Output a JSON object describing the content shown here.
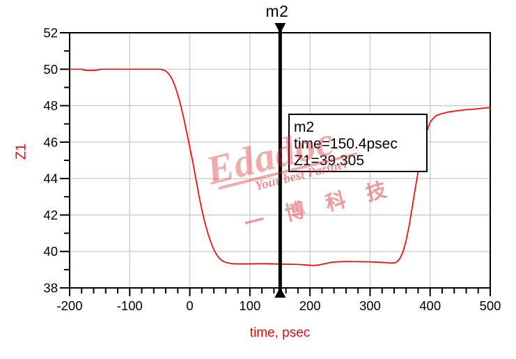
{
  "marker_top_label": "m2",
  "axes": {
    "y_title": "Z1",
    "x_title": "time, psec",
    "x_tick_labels": [
      "-200",
      "-100",
      "0",
      "100",
      "200",
      "300",
      "400",
      "500"
    ],
    "y_tick_labels": [
      "38",
      "40",
      "42",
      "44",
      "46",
      "48",
      "50",
      "52"
    ]
  },
  "annotation_box": {
    "lines": [
      "m2",
      "time=150.4psec",
      "Z1=39.305"
    ]
  },
  "watermark": {
    "brand": "Edadoc",
    "tagline": "Your best Partner",
    "cjk": "一博科技"
  },
  "colors": {
    "trace": "#ff0000",
    "axis": "#000000",
    "grid": "#c9c9c9",
    "tick_label": "#000000",
    "axis_title": "#ff0000",
    "marker": "#000000",
    "box_fill": "#ffffff",
    "box_border": "#000000"
  },
  "chart_data": {
    "type": "line",
    "title": "",
    "xlabel": "time, psec",
    "ylabel": "Z1",
    "xlim": [
      -200,
      500
    ],
    "ylim": [
      38,
      52
    ],
    "x_major_ticks": [
      -200,
      -100,
      0,
      100,
      200,
      300,
      400,
      500
    ],
    "x_minor_step": 20,
    "y_major_ticks": [
      38,
      40,
      42,
      44,
      46,
      48,
      50,
      52
    ],
    "y_minor_step": 1,
    "grid": true,
    "legend": false,
    "marker": {
      "name": "m2",
      "time_psec": 150.4,
      "value": 39.305
    },
    "series": [
      {
        "name": "Z1",
        "color": "#ff0000",
        "points": [
          [
            -200,
            50.0
          ],
          [
            -180,
            50.0
          ],
          [
            -175,
            49.95
          ],
          [
            -165,
            49.93
          ],
          [
            -155,
            49.95
          ],
          [
            -148,
            50.0
          ],
          [
            -120,
            50.0
          ],
          [
            -100,
            50.0
          ],
          [
            -80,
            50.0
          ],
          [
            -60,
            50.0
          ],
          [
            -50,
            50.0
          ],
          [
            -45,
            49.97
          ],
          [
            -40,
            49.9
          ],
          [
            -35,
            49.75
          ],
          [
            -30,
            49.5
          ],
          [
            -25,
            49.1
          ],
          [
            -20,
            48.6
          ],
          [
            -15,
            48.0
          ],
          [
            -10,
            47.3
          ],
          [
            -5,
            46.5
          ],
          [
            0,
            45.7
          ],
          [
            5,
            44.9
          ],
          [
            10,
            44.0
          ],
          [
            15,
            43.1
          ],
          [
            20,
            42.3
          ],
          [
            25,
            41.6
          ],
          [
            30,
            41.0
          ],
          [
            35,
            40.5
          ],
          [
            40,
            40.1
          ],
          [
            45,
            39.8
          ],
          [
            50,
            39.6
          ],
          [
            55,
            39.47
          ],
          [
            60,
            39.4
          ],
          [
            65,
            39.36
          ],
          [
            70,
            39.33
          ],
          [
            80,
            39.32
          ],
          [
            100,
            39.32
          ],
          [
            120,
            39.33
          ],
          [
            140,
            39.32
          ],
          [
            150.4,
            39.305
          ],
          [
            160,
            39.3
          ],
          [
            180,
            39.29
          ],
          [
            195,
            39.26
          ],
          [
            205,
            39.23
          ],
          [
            215,
            39.26
          ],
          [
            225,
            39.33
          ],
          [
            235,
            39.4
          ],
          [
            245,
            39.43
          ],
          [
            260,
            39.45
          ],
          [
            280,
            39.44
          ],
          [
            300,
            39.43
          ],
          [
            315,
            39.41
          ],
          [
            325,
            39.39
          ],
          [
            335,
            39.36
          ],
          [
            342,
            39.38
          ],
          [
            347,
            39.5
          ],
          [
            351,
            39.7
          ],
          [
            355,
            40.0
          ],
          [
            360,
            40.6
          ],
          [
            365,
            41.4
          ],
          [
            370,
            42.4
          ],
          [
            375,
            43.4
          ],
          [
            380,
            44.4
          ],
          [
            385,
            45.3
          ],
          [
            390,
            46.05
          ],
          [
            395,
            46.65
          ],
          [
            400,
            47.1
          ],
          [
            405,
            47.3
          ],
          [
            410,
            47.45
          ],
          [
            418,
            47.55
          ],
          [
            430,
            47.65
          ],
          [
            445,
            47.72
          ],
          [
            460,
            47.78
          ],
          [
            475,
            47.82
          ],
          [
            490,
            47.87
          ],
          [
            500,
            47.9
          ]
        ]
      }
    ]
  }
}
